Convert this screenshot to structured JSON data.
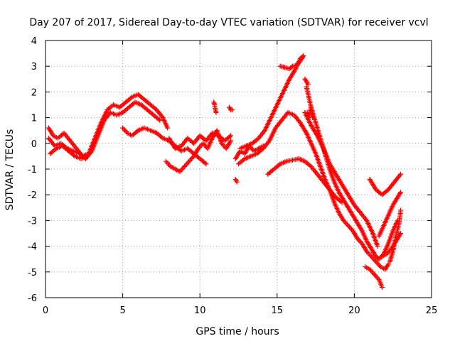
{
  "chart_data": {
    "type": "scatter",
    "title": "Day 207 of 2017, Sidereal Day-to-day VTEC variation (SDTVAR) for receiver vcvl",
    "xlabel": "GPS time / hours",
    "ylabel": "SDTVAR / TECUs",
    "xlim": [
      0,
      25
    ],
    "ylim": [
      -6,
      4
    ],
    "xticks": [
      "0",
      "5",
      "10",
      "15",
      "20",
      "25"
    ],
    "yticks": [
      "4",
      "3",
      "2",
      "1",
      "0",
      "-1",
      "-2",
      "-3",
      "-4",
      "-5",
      "-6"
    ],
    "grid": true,
    "marker": "+",
    "color": "#ff0000",
    "series": [
      {
        "name": "",
        "segments": [
          [
            [
              0.2,
              0.6
            ],
            [
              0.5,
              0.3
            ],
            [
              0.8,
              0.2
            ],
            [
              1.2,
              0.4
            ],
            [
              1.6,
              0.1
            ],
            [
              2.0,
              -0.2
            ],
            [
              2.4,
              -0.5
            ],
            [
              2.8,
              -0.4
            ],
            [
              3.2,
              0.2
            ],
            [
              3.6,
              0.8
            ],
            [
              4.0,
              1.3
            ],
            [
              4.4,
              1.5
            ],
            [
              4.8,
              1.4
            ],
            [
              5.2,
              1.6
            ],
            [
              5.6,
              1.8
            ],
            [
              6.0,
              1.9
            ],
            [
              6.4,
              1.7
            ],
            [
              6.8,
              1.5
            ],
            [
              7.2,
              1.3
            ],
            [
              7.6,
              1.0
            ],
            [
              7.9,
              0.6
            ]
          ],
          [
            [
              0.2,
              0.2
            ],
            [
              0.6,
              -0.1
            ],
            [
              1.0,
              0.0
            ],
            [
              1.4,
              -0.2
            ],
            [
              1.8,
              -0.3
            ],
            [
              2.2,
              -0.4
            ],
            [
              2.6,
              -0.6
            ],
            [
              3.0,
              -0.3
            ],
            [
              3.4,
              0.3
            ],
            [
              3.8,
              0.9
            ],
            [
              4.2,
              1.2
            ],
            [
              4.6,
              1.1
            ],
            [
              5.0,
              1.2
            ],
            [
              5.4,
              1.4
            ],
            [
              5.8,
              1.6
            ],
            [
              6.2,
              1.5
            ],
            [
              6.6,
              1.3
            ],
            [
              7.0,
              1.1
            ],
            [
              7.4,
              0.9
            ]
          ],
          [
            [
              0.3,
              -0.4
            ],
            [
              0.7,
              -0.2
            ],
            [
              1.1,
              -0.1
            ],
            [
              1.5,
              -0.3
            ],
            [
              1.9,
              -0.5
            ],
            [
              2.3,
              -0.6
            ],
            [
              2.7,
              -0.5
            ]
          ],
          [
            [
              5.0,
              0.6
            ],
            [
              5.3,
              0.4
            ],
            [
              5.6,
              0.3
            ],
            [
              6.0,
              0.5
            ],
            [
              6.4,
              0.6
            ],
            [
              6.8,
              0.5
            ],
            [
              7.2,
              0.4
            ],
            [
              7.6,
              0.2
            ],
            [
              8.0,
              0.1
            ],
            [
              8.4,
              -0.1
            ],
            [
              8.8,
              -0.3
            ],
            [
              9.2,
              -0.2
            ],
            [
              9.6,
              -0.4
            ],
            [
              10.0,
              -0.6
            ],
            [
              10.4,
              -0.8
            ]
          ],
          [
            [
              7.8,
              -0.7
            ],
            [
              8.1,
              -0.9
            ],
            [
              8.4,
              -1.0
            ],
            [
              8.7,
              -1.1
            ],
            [
              9.0,
              -0.9
            ],
            [
              9.3,
              -0.7
            ],
            [
              9.6,
              -0.5
            ],
            [
              9.9,
              -0.2
            ],
            [
              10.2,
              0.0
            ],
            [
              10.5,
              -0.2
            ],
            [
              10.8,
              0.2
            ],
            [
              11.1,
              0.5
            ],
            [
              11.4,
              0.0
            ],
            [
              11.7,
              -0.2
            ],
            [
              12.0,
              0.1
            ]
          ],
          [
            [
              8.0,
              0.2
            ],
            [
              8.4,
              -0.2
            ],
            [
              8.8,
              -0.1
            ],
            [
              9.2,
              0.2
            ],
            [
              9.6,
              0.0
            ],
            [
              10.0,
              0.3
            ],
            [
              10.4,
              0.1
            ],
            [
              10.8,
              0.4
            ],
            [
              11.2,
              0.3
            ],
            [
              11.6,
              0.1
            ],
            [
              12.0,
              0.3
            ]
          ],
          [
            [
              12.3,
              -0.6
            ],
            [
              12.6,
              -0.3
            ],
            [
              12.9,
              -0.4
            ],
            [
              13.2,
              -0.1
            ],
            [
              13.5,
              -0.3
            ],
            [
              13.8,
              -0.2
            ],
            [
              14.1,
              -0.1
            ]
          ],
          [
            [
              12.3,
              -1.4
            ],
            [
              12.4,
              -1.5
            ]
          ],
          [
            [
              12.5,
              -0.8
            ],
            [
              12.9,
              -0.6
            ],
            [
              13.3,
              -0.5
            ],
            [
              13.7,
              -0.4
            ],
            [
              14.1,
              -0.2
            ],
            [
              14.5,
              0.1
            ],
            [
              14.9,
              0.6
            ],
            [
              15.3,
              0.9
            ],
            [
              15.7,
              1.2
            ],
            [
              16.1,
              1.1
            ],
            [
              16.5,
              0.8
            ],
            [
              16.9,
              0.4
            ]
          ],
          [
            [
              12.6,
              -0.2
            ],
            [
              13.0,
              -0.1
            ],
            [
              13.4,
              0.0
            ],
            [
              13.8,
              0.2
            ],
            [
              14.2,
              0.5
            ],
            [
              14.6,
              1.0
            ],
            [
              15.0,
              1.5
            ],
            [
              15.4,
              2.0
            ],
            [
              15.8,
              2.5
            ],
            [
              16.2,
              2.9
            ],
            [
              16.5,
              3.3
            ],
            [
              16.7,
              3.4
            ]
          ],
          [
            [
              15.2,
              3.0
            ],
            [
              15.5,
              2.95
            ],
            [
              15.8,
              2.9
            ],
            [
              16.0,
              3.0
            ],
            [
              16.3,
              3.05
            ],
            [
              16.5,
              3.2
            ],
            [
              16.7,
              3.4
            ]
          ],
          [
            [
              14.4,
              -1.2
            ],
            [
              14.8,
              -1.0
            ],
            [
              15.2,
              -0.8
            ],
            [
              15.6,
              -0.7
            ],
            [
              16.0,
              -0.65
            ],
            [
              16.4,
              -0.6
            ],
            [
              16.8,
              -0.7
            ],
            [
              17.2,
              -0.9
            ],
            [
              17.6,
              -1.2
            ],
            [
              18.0,
              -1.5
            ],
            [
              18.4,
              -1.8
            ],
            [
              18.8,
              -2.1
            ],
            [
              19.2,
              -2.3
            ]
          ],
          [
            [
              16.9,
              0.4
            ],
            [
              17.2,
              0.0
            ],
            [
              17.5,
              -0.4
            ],
            [
              17.8,
              -0.9
            ],
            [
              18.1,
              -1.4
            ],
            [
              18.4,
              -1.8
            ],
            [
              18.7,
              -2.3
            ],
            [
              19.0,
              -2.7
            ],
            [
              19.3,
              -3.0
            ],
            [
              19.6,
              -3.2
            ],
            [
              19.9,
              -3.4
            ],
            [
              20.2,
              -3.7
            ],
            [
              20.5,
              -3.9
            ],
            [
              20.8,
              -4.2
            ],
            [
              21.1,
              -4.4
            ],
            [
              21.4,
              -4.6
            ],
            [
              21.7,
              -4.8
            ],
            [
              22.0,
              -4.9
            ],
            [
              22.2,
              -4.7
            ]
          ],
          [
            [
              16.9,
              2.2
            ],
            [
              17.2,
              1.4
            ],
            [
              17.5,
              0.8
            ],
            [
              17.8,
              0.2
            ],
            [
              18.1,
              -0.4
            ],
            [
              18.4,
              -1.0
            ],
            [
              18.7,
              -1.5
            ],
            [
              19.0,
              -1.9
            ],
            [
              19.3,
              -2.2
            ],
            [
              19.6,
              -2.5
            ],
            [
              19.9,
              -2.8
            ],
            [
              20.2,
              -3.1
            ],
            [
              20.5,
              -3.4
            ],
            [
              20.8,
              -3.8
            ],
            [
              21.1,
              -4.1
            ],
            [
              21.4,
              -4.4
            ],
            [
              21.6,
              -4.5
            ],
            [
              21.9,
              -4.3
            ],
            [
              22.2,
              -3.9
            ],
            [
              22.5,
              -3.4
            ],
            [
              22.8,
              -3.0
            ]
          ],
          [
            [
              16.8,
              1.2
            ],
            [
              17.2,
              0.7
            ],
            [
              17.6,
              0.3
            ],
            [
              18.0,
              -0.2
            ],
            [
              18.4,
              -0.8
            ],
            [
              18.8,
              -1.2
            ],
            [
              19.2,
              -1.6
            ],
            [
              19.6,
              -2.0
            ],
            [
              20.0,
              -2.4
            ],
            [
              20.4,
              -2.7
            ],
            [
              20.8,
              -3.0
            ],
            [
              21.2,
              -3.5
            ],
            [
              21.5,
              -4.0
            ]
          ],
          [
            [
              21.0,
              -1.4
            ],
            [
              21.4,
              -1.8
            ],
            [
              21.8,
              -2.0
            ],
            [
              22.2,
              -1.8
            ],
            [
              22.6,
              -1.5
            ],
            [
              23.0,
              -1.2
            ]
          ],
          [
            [
              20.7,
              -4.8
            ],
            [
              21.0,
              -4.9
            ],
            [
              21.3,
              -5.1
            ],
            [
              21.6,
              -5.3
            ],
            [
              21.8,
              -5.6
            ]
          ],
          [
            [
              21.8,
              -4.4
            ],
            [
              22.1,
              -4.3
            ],
            [
              22.4,
              -4.1
            ],
            [
              22.7,
              -3.8
            ],
            [
              23.0,
              -3.5
            ]
          ],
          [
            [
              21.6,
              -3.6
            ],
            [
              21.9,
              -3.2
            ],
            [
              22.2,
              -2.8
            ],
            [
              22.5,
              -2.4
            ],
            [
              22.8,
              -2.1
            ],
            [
              23.0,
              -1.9
            ]
          ],
          [
            [
              22.3,
              -4.6
            ],
            [
              22.5,
              -4.2
            ],
            [
              22.7,
              -3.6
            ],
            [
              22.9,
              -3.1
            ],
            [
              23.0,
              -2.6
            ]
          ],
          [
            [
              10.9,
              1.6
            ],
            [
              10.95,
              1.5
            ],
            [
              11.0,
              1.3
            ],
            [
              11.05,
              1.2
            ]
          ],
          [
            [
              11.9,
              1.4
            ],
            [
              12.0,
              1.3
            ],
            [
              12.1,
              1.3
            ]
          ],
          [
            [
              16.95,
              1.2
            ],
            [
              17.05,
              1.0
            ],
            [
              17.2,
              1.4
            ],
            [
              17.3,
              1.0
            ]
          ],
          [
            [
              16.8,
              2.5
            ],
            [
              16.9,
              2.4
            ],
            [
              17.0,
              2.3
            ]
          ]
        ]
      }
    ]
  }
}
